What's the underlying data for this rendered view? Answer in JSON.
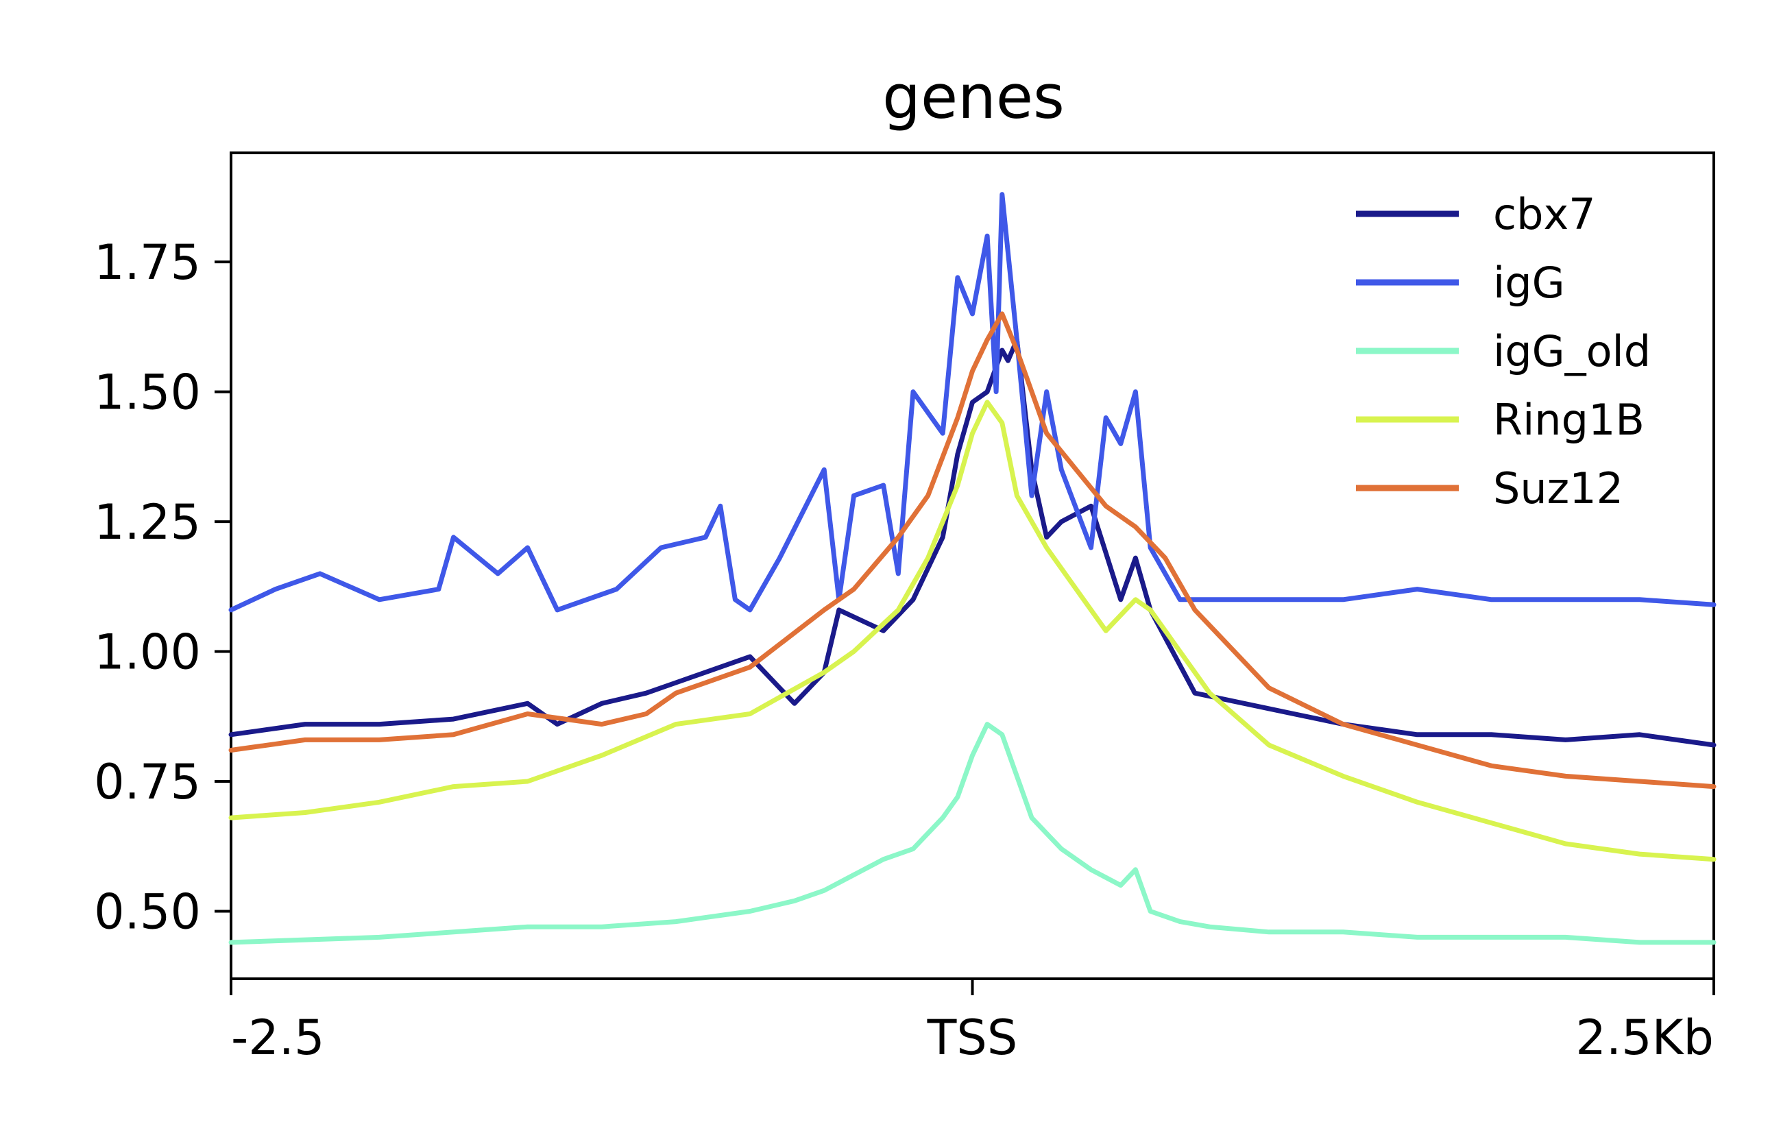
{
  "chart_data": {
    "type": "line",
    "title": "genes",
    "xlabel": "",
    "ylabel": "",
    "x_ticks": [
      {
        "value": -2.5,
        "label": "-2.5"
      },
      {
        "value": 0,
        "label": "TSS"
      },
      {
        "value": 2.5,
        "label": "2.5Kb"
      }
    ],
    "y_ticks": [
      0.5,
      0.75,
      1.0,
      1.25,
      1.5,
      1.75
    ],
    "y_tick_labels": [
      "0.50",
      "0.75",
      "1.00",
      "1.25",
      "1.50",
      "1.75"
    ],
    "xlim": [
      -2.5,
      2.5
    ],
    "ylim": [
      0.37,
      1.96
    ],
    "grid": false,
    "legend_position": "top-right",
    "series": [
      {
        "name": "cbx7",
        "color": "#1a1a8a",
        "x": [
          -2.5,
          -2.25,
          -2.0,
          -1.75,
          -1.5,
          -1.4,
          -1.25,
          -1.1,
          -1.0,
          -0.75,
          -0.6,
          -0.5,
          -0.45,
          -0.3,
          -0.2,
          -0.1,
          -0.05,
          0.0,
          0.05,
          0.1,
          0.12,
          0.15,
          0.2,
          0.25,
          0.3,
          0.4,
          0.5,
          0.55,
          0.6,
          0.75,
          1.0,
          1.25,
          1.5,
          1.75,
          2.0,
          2.25,
          2.5
        ],
        "y": [
          0.84,
          0.86,
          0.86,
          0.87,
          0.9,
          0.86,
          0.9,
          0.92,
          0.94,
          0.99,
          0.9,
          0.96,
          1.08,
          1.04,
          1.1,
          1.22,
          1.38,
          1.48,
          1.5,
          1.58,
          1.56,
          1.6,
          1.35,
          1.22,
          1.25,
          1.28,
          1.1,
          1.18,
          1.08,
          0.92,
          0.89,
          0.86,
          0.84,
          0.84,
          0.83,
          0.84,
          0.82
        ]
      },
      {
        "name": "igG",
        "color": "#3f58e8",
        "x": [
          -2.5,
          -2.35,
          -2.2,
          -2.0,
          -1.8,
          -1.75,
          -1.6,
          -1.5,
          -1.4,
          -1.2,
          -1.05,
          -0.9,
          -0.85,
          -0.8,
          -0.75,
          -0.65,
          -0.5,
          -0.45,
          -0.4,
          -0.3,
          -0.25,
          -0.2,
          -0.1,
          -0.05,
          0.0,
          0.05,
          0.08,
          0.1,
          0.15,
          0.2,
          0.25,
          0.3,
          0.4,
          0.45,
          0.5,
          0.55,
          0.6,
          0.65,
          0.7,
          0.8,
          1.0,
          1.25,
          1.5,
          1.75,
          2.0,
          2.25,
          2.5
        ],
        "y": [
          1.08,
          1.12,
          1.15,
          1.1,
          1.12,
          1.22,
          1.15,
          1.2,
          1.08,
          1.12,
          1.2,
          1.22,
          1.28,
          1.1,
          1.08,
          1.18,
          1.35,
          1.1,
          1.3,
          1.32,
          1.15,
          1.5,
          1.42,
          1.72,
          1.65,
          1.8,
          1.5,
          1.88,
          1.6,
          1.3,
          1.5,
          1.35,
          1.2,
          1.45,
          1.4,
          1.5,
          1.2,
          1.15,
          1.1,
          1.1,
          1.1,
          1.1,
          1.12,
          1.1,
          1.1,
          1.1,
          1.09
        ]
      },
      {
        "name": "igG_old",
        "color": "#8cf7c8",
        "x": [
          -2.5,
          -2.0,
          -1.5,
          -1.25,
          -1.0,
          -0.75,
          -0.6,
          -0.5,
          -0.4,
          -0.3,
          -0.2,
          -0.1,
          -0.05,
          0.0,
          0.05,
          0.1,
          0.15,
          0.2,
          0.3,
          0.4,
          0.5,
          0.55,
          0.6,
          0.7,
          0.8,
          1.0,
          1.25,
          1.5,
          1.75,
          2.0,
          2.25,
          2.5
        ],
        "y": [
          0.44,
          0.45,
          0.47,
          0.47,
          0.48,
          0.5,
          0.52,
          0.54,
          0.57,
          0.6,
          0.62,
          0.68,
          0.72,
          0.8,
          0.86,
          0.84,
          0.76,
          0.68,
          0.62,
          0.58,
          0.55,
          0.58,
          0.5,
          0.48,
          0.47,
          0.46,
          0.46,
          0.45,
          0.45,
          0.45,
          0.44,
          0.44
        ]
      },
      {
        "name": "Ring1B",
        "color": "#d8f34f",
        "x": [
          -2.5,
          -2.25,
          -2.0,
          -1.75,
          -1.5,
          -1.25,
          -1.0,
          -0.75,
          -0.5,
          -0.4,
          -0.25,
          -0.15,
          -0.05,
          0.0,
          0.05,
          0.1,
          0.15,
          0.25,
          0.35,
          0.45,
          0.55,
          0.6,
          0.7,
          0.8,
          1.0,
          1.25,
          1.5,
          1.75,
          2.0,
          2.25,
          2.5
        ],
        "y": [
          0.68,
          0.69,
          0.71,
          0.74,
          0.75,
          0.8,
          0.86,
          0.88,
          0.96,
          1.0,
          1.08,
          1.18,
          1.32,
          1.42,
          1.48,
          1.44,
          1.3,
          1.2,
          1.12,
          1.04,
          1.1,
          1.08,
          1.0,
          0.92,
          0.82,
          0.76,
          0.71,
          0.67,
          0.63,
          0.61,
          0.6
        ]
      },
      {
        "name": "Suz12",
        "color": "#e07137",
        "x": [
          -2.5,
          -2.25,
          -2.0,
          -1.75,
          -1.5,
          -1.25,
          -1.1,
          -1.0,
          -0.75,
          -0.5,
          -0.4,
          -0.25,
          -0.15,
          -0.05,
          0.0,
          0.05,
          0.1,
          0.15,
          0.25,
          0.35,
          0.45,
          0.55,
          0.65,
          0.75,
          1.0,
          1.25,
          1.5,
          1.75,
          2.0,
          2.25,
          2.5
        ],
        "y": [
          0.81,
          0.83,
          0.83,
          0.84,
          0.88,
          0.86,
          0.88,
          0.92,
          0.97,
          1.08,
          1.12,
          1.22,
          1.3,
          1.45,
          1.54,
          1.6,
          1.65,
          1.58,
          1.42,
          1.35,
          1.28,
          1.24,
          1.18,
          1.08,
          0.93,
          0.86,
          0.82,
          0.78,
          0.76,
          0.75,
          0.74
        ]
      }
    ]
  }
}
